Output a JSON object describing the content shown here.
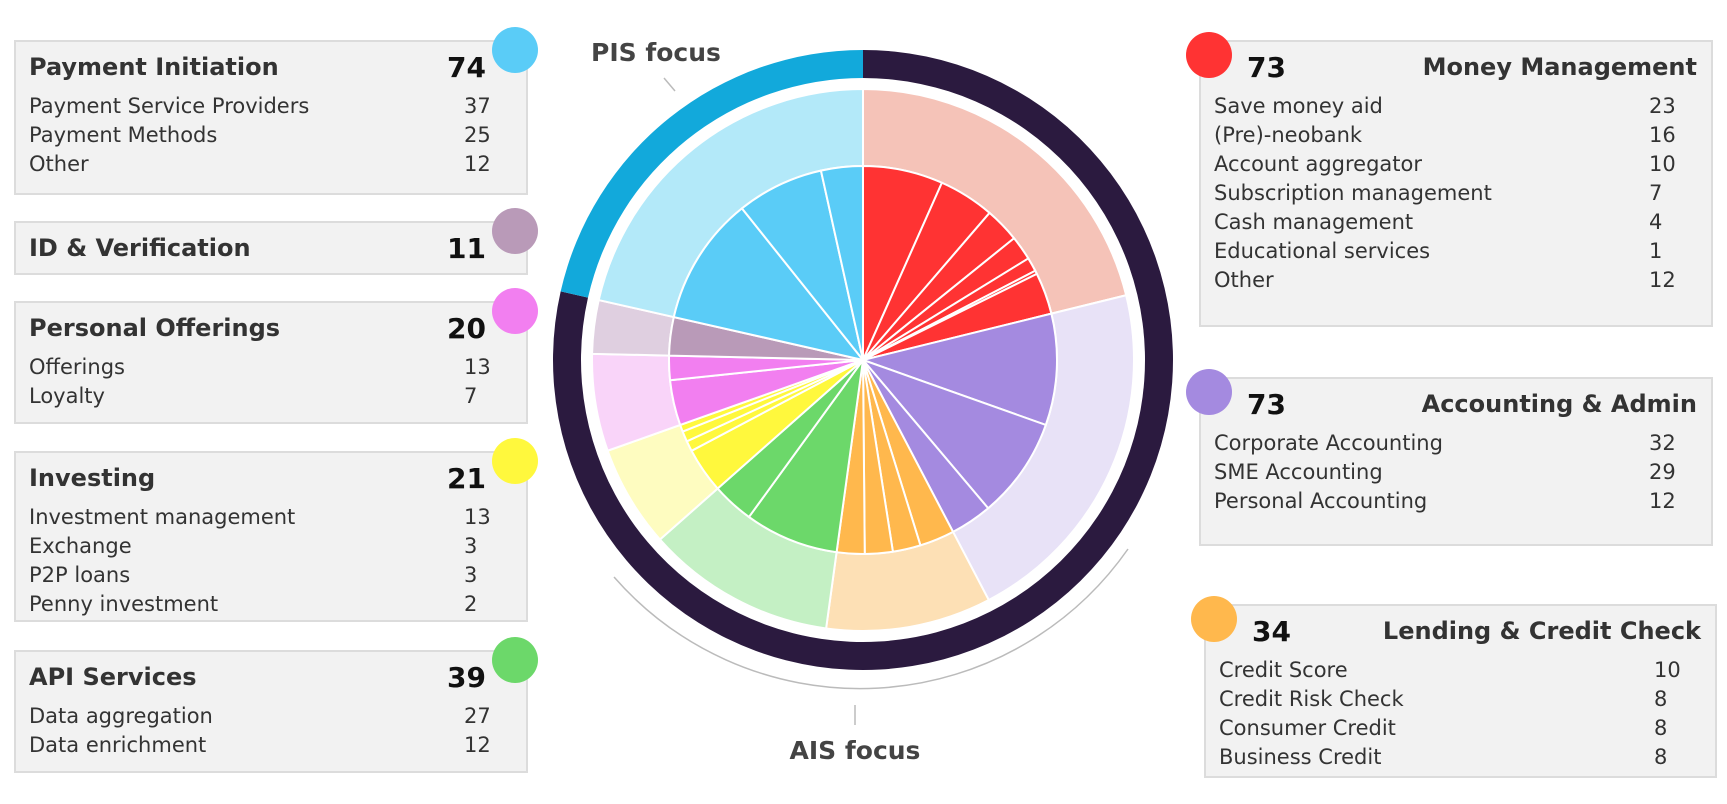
{
  "chart_data": {
    "type": "sunburst",
    "focus": [
      {
        "label": "AIS focus",
        "color": "#2b1a3f"
      },
      {
        "label": "PIS focus",
        "color": "#12a9db"
      }
    ],
    "groups": [
      {
        "name": "Money Management",
        "value": 73,
        "color": "#ff3333",
        "light_color": "#f5c3b8",
        "focus": 0,
        "items": [
          {
            "name": "Save money aid",
            "value": 23
          },
          {
            "name": "(Pre)-neobank",
            "value": 16
          },
          {
            "name": "Account aggregator",
            "value": 10
          },
          {
            "name": "Subscription management",
            "value": 7
          },
          {
            "name": "Cash management",
            "value": 4
          },
          {
            "name": "Educational services",
            "value": 1
          },
          {
            "name": "Other",
            "value": 12
          }
        ]
      },
      {
        "name": "Accounting & Admin",
        "value": 73,
        "color": "#a48ae0",
        "light_color": "#e8e2f7",
        "focus": 0,
        "items": [
          {
            "name": "Corporate Accounting",
            "value": 32
          },
          {
            "name": "SME Accounting",
            "value": 29
          },
          {
            "name": "Personal Accounting",
            "value": 12
          }
        ]
      },
      {
        "name": "Lending & Credit Check",
        "value": 34,
        "color": "#ffb84d",
        "light_color": "#fde0b5",
        "focus": 0,
        "items": [
          {
            "name": "Credit Score",
            "value": 10
          },
          {
            "name": "Credit Risk Check",
            "value": 8
          },
          {
            "name": "Consumer Credit",
            "value": 8
          },
          {
            "name": "Business Credit",
            "value": 8
          }
        ]
      },
      {
        "name": "API Services",
        "value": 39,
        "color": "#6cd86a",
        "light_color": "#c4f0c4",
        "focus": 0,
        "items": [
          {
            "name": "Data aggregation",
            "value": 27
          },
          {
            "name": "Data enrichment",
            "value": 12
          }
        ]
      },
      {
        "name": "Investing",
        "value": 21,
        "color": "#fff83d",
        "light_color": "#fefcc0",
        "focus": 0,
        "items": [
          {
            "name": "Investment management",
            "value": 13
          },
          {
            "name": "Exchange",
            "value": 3
          },
          {
            "name": "P2P loans",
            "value": 3
          },
          {
            "name": "Penny investment",
            "value": 2
          }
        ]
      },
      {
        "name": "Personal Offerings",
        "value": 20,
        "color": "#f27ff0",
        "light_color": "#f9d4f9",
        "focus": 0,
        "items": [
          {
            "name": "Offerings",
            "value": 13
          },
          {
            "name": "Loyalty",
            "value": 7
          }
        ]
      },
      {
        "name": "ID & Verification",
        "value": 11,
        "color": "#b99ab8",
        "light_color": "#dfcfe0",
        "focus": 0,
        "items": []
      },
      {
        "name": "Payment Initiation",
        "value": 74,
        "color": "#5accf7",
        "light_color": "#b3e9f9",
        "focus": 1,
        "items": [
          {
            "name": "Payment Service Providers",
            "value": 37
          },
          {
            "name": "Payment Methods",
            "value": 25
          },
          {
            "name": "Other",
            "value": 12
          }
        ]
      }
    ]
  }
}
